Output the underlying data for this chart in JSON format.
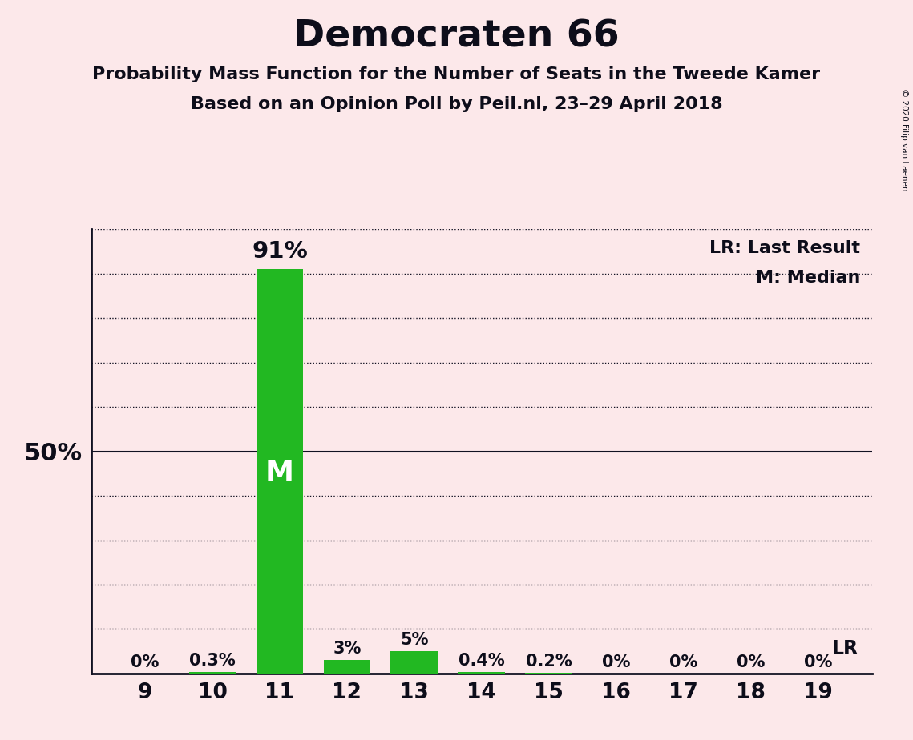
{
  "title": "Democraten 66",
  "subtitle1": "Probability Mass Function for the Number of Seats in the Tweede Kamer",
  "subtitle2": "Based on an Opinion Poll by Peil.nl, 23–29 April 2018",
  "copyright": "© 2020 Filip van Laenen",
  "seats": [
    9,
    10,
    11,
    12,
    13,
    14,
    15,
    16,
    17,
    18,
    19
  ],
  "probabilities": [
    0.0,
    0.3,
    91.0,
    3.0,
    5.0,
    0.4,
    0.2,
    0.0,
    0.0,
    0.0,
    0.0
  ],
  "prob_labels": [
    "0%",
    "0.3%",
    "91%",
    "3%",
    "5%",
    "0.4%",
    "0.2%",
    "0%",
    "0%",
    "0%",
    "0%"
  ],
  "bar_color": "#22b822",
  "median_seat": 11,
  "last_result_seat": 19,
  "background_color": "#fce8ea",
  "ylabel_50": "50%",
  "legend_lr": "LR: Last Result",
  "legend_m": "M: Median",
  "lr_label": "LR",
  "m_label": "M",
  "title_fontsize": 34,
  "subtitle_fontsize": 16,
  "label_fontsize": 15,
  "tick_fontsize": 19,
  "ytick_50_fontsize": 22,
  "ylim": [
    0,
    100
  ],
  "ytick_positions": [
    10,
    20,
    30,
    40,
    50,
    60,
    70,
    80,
    90,
    100
  ],
  "grid_color": "#111122",
  "axis_color": "#111122",
  "text_color": "#0d0d1a",
  "bar_width": 0.7
}
